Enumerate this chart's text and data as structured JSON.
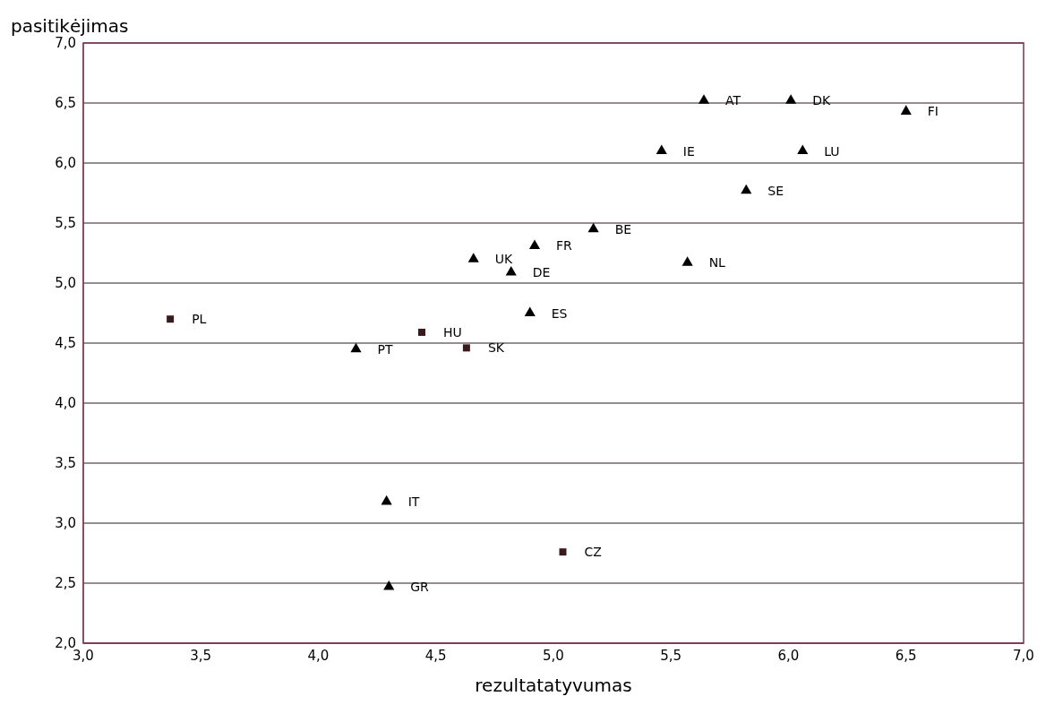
{
  "chart_data": {
    "type": "scatter",
    "xlabel": "rezultatatyvumas",
    "ylabel": "pasitikėjimas",
    "xlim": [
      3,
      7
    ],
    "xticks": [
      {
        "value": 3,
        "label": "3,0"
      },
      {
        "value": 3.5,
        "label": "3,5"
      },
      {
        "value": 4,
        "label": "4,0"
      },
      {
        "value": 4.5,
        "label": "4,5"
      },
      {
        "value": 5,
        "label": "5,0"
      },
      {
        "value": 5.5,
        "label": "5,5"
      },
      {
        "value": 6,
        "label": "6,0"
      },
      {
        "value": 6.5,
        "label": "6,5"
      },
      {
        "value": 7,
        "label": "7,0"
      }
    ],
    "ylim": [
      2,
      7
    ],
    "yticks": [
      {
        "value": 2,
        "label": "2,0"
      },
      {
        "value": 2.5,
        "label": "2,5"
      },
      {
        "value": 3,
        "label": "3,0"
      },
      {
        "value": 3.5,
        "label": "3,5"
      },
      {
        "value": 4,
        "label": "4,0"
      },
      {
        "value": 4.5,
        "label": "4,5"
      },
      {
        "value": 5,
        "label": "5,0"
      },
      {
        "value": 5.5,
        "label": "5,5"
      },
      {
        "value": 6,
        "label": "6,0"
      },
      {
        "value": 6.5,
        "label": "6,5"
      },
      {
        "value": 7,
        "label": "7,0"
      }
    ],
    "grid": "y",
    "series": [
      {
        "color": "#000000",
        "marker": "triangle",
        "x": [
          5.64,
          6.01,
          6.5,
          5.46,
          6.06,
          5.82,
          5.17,
          4.92,
          4.66,
          4.82,
          5.57,
          4.9,
          4.16,
          4.29,
          4.3
        ],
        "values": [
          6.52,
          6.52,
          6.43,
          6.1,
          6.1,
          5.77,
          5.45,
          5.31,
          5.2,
          5.09,
          5.17,
          4.75,
          4.45,
          3.18,
          2.47
        ]
      },
      {
        "color": "#3a1a1e",
        "marker": "square",
        "x": [
          3.37,
          4.44,
          4.63,
          5.04
        ],
        "values": [
          4.7,
          4.59,
          4.46,
          2.76
        ]
      }
    ],
    "annotations": [
      {
        "text": "AT",
        "x": 5.64,
        "y": 6.52
      },
      {
        "text": "DK",
        "x": 6.01,
        "y": 6.52
      },
      {
        "text": "FI",
        "x": 6.5,
        "y": 6.43
      },
      {
        "text": "IE",
        "x": 5.46,
        "y": 6.1
      },
      {
        "text": "LU",
        "x": 6.06,
        "y": 6.1
      },
      {
        "text": "SE",
        "x": 5.82,
        "y": 5.77
      },
      {
        "text": "BE",
        "x": 5.17,
        "y": 5.45
      },
      {
        "text": "FR",
        "x": 4.92,
        "y": 5.31
      },
      {
        "text": "UK",
        "x": 4.66,
        "y": 5.2
      },
      {
        "text": "DE",
        "x": 4.82,
        "y": 5.09
      },
      {
        "text": "NL",
        "x": 5.57,
        "y": 5.17
      },
      {
        "text": "ES",
        "x": 4.9,
        "y": 4.75
      },
      {
        "text": "PT",
        "x": 4.16,
        "y": 4.45
      },
      {
        "text": "IT",
        "x": 4.29,
        "y": 3.18
      },
      {
        "text": "GR",
        "x": 4.3,
        "y": 2.47
      },
      {
        "text": "PL",
        "x": 3.37,
        "y": 4.7
      },
      {
        "text": "HU",
        "x": 4.44,
        "y": 4.59
      },
      {
        "text": "SK",
        "x": 4.63,
        "y": 4.46
      },
      {
        "text": "CZ",
        "x": 5.04,
        "y": 2.76
      }
    ]
  }
}
